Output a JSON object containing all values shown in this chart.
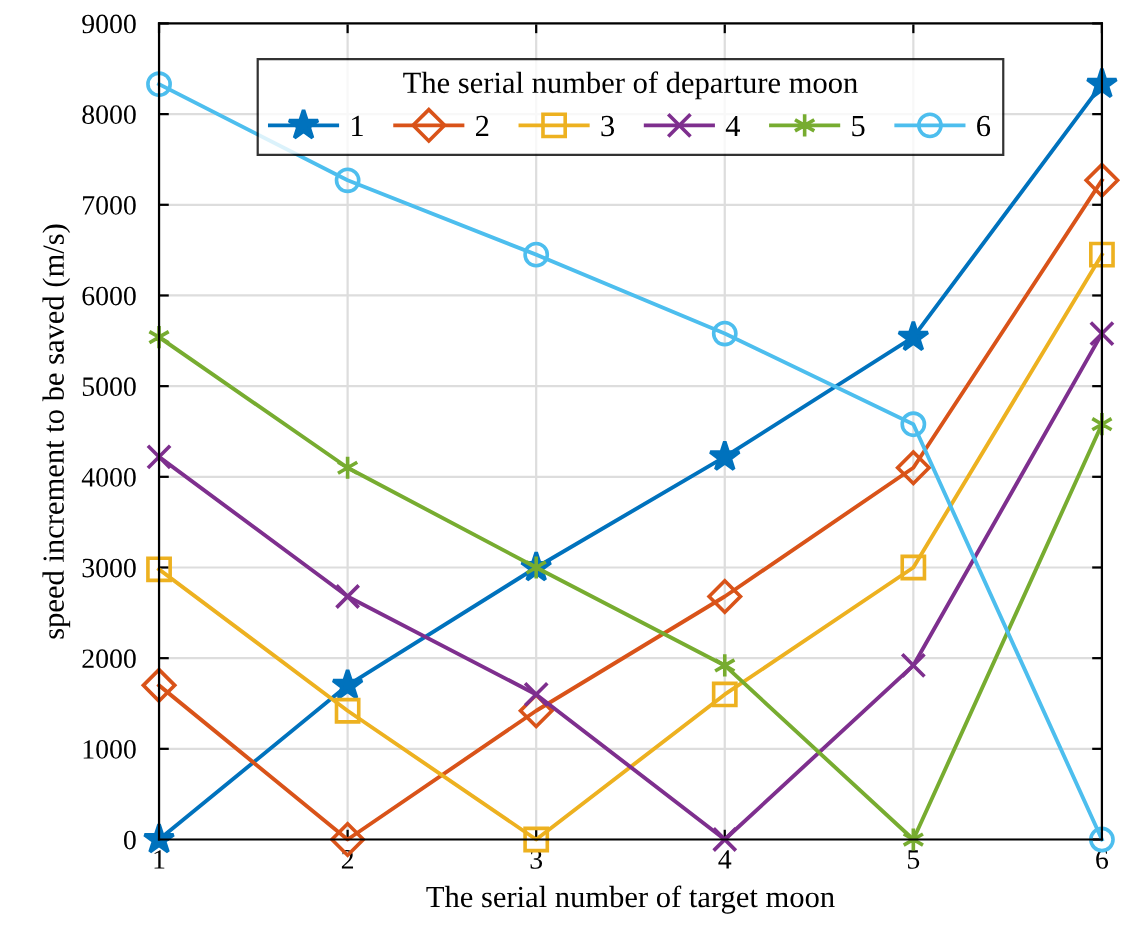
{
  "chart_data": {
    "type": "line",
    "xlabel": "The serial number of target moon",
    "ylabel": "speed increment to be saved (m/s)",
    "legend_title": "The serial number of departure moon",
    "x": [
      1,
      2,
      3,
      4,
      5,
      6
    ],
    "series": [
      {
        "name": "1",
        "color": "#0072bd",
        "marker": "star",
        "values": [
          0,
          1700,
          3000,
          4220,
          5540,
          8330
        ]
      },
      {
        "name": "2",
        "color": "#d95319",
        "marker": "diamond",
        "values": [
          1700,
          0,
          1420,
          2680,
          4100,
          7270
        ]
      },
      {
        "name": "3",
        "color": "#edb120",
        "marker": "square",
        "values": [
          2980,
          1420,
          0,
          1600,
          3000,
          6450
        ]
      },
      {
        "name": "4",
        "color": "#7e2f8e",
        "marker": "cross",
        "values": [
          4220,
          2680,
          1600,
          0,
          1920,
          5580
        ]
      },
      {
        "name": "5",
        "color": "#77ac30",
        "marker": "cross",
        "values": [
          5540,
          4100,
          3000,
          1920,
          0,
          4580
        ]
      },
      {
        "name": "6",
        "color": "#4dbeee",
        "marker": "circle",
        "values": [
          8330,
          7270,
          6450,
          5580,
          4580,
          0
        ]
      }
    ],
    "xlim": [
      1,
      6
    ],
    "xticks": [
      1,
      2,
      3,
      4,
      5,
      6
    ],
    "ylim": [
      0,
      9000
    ],
    "yticks": [
      0,
      1000,
      2000,
      3000,
      4000,
      5000,
      6000,
      7000,
      8000,
      9000
    ],
    "grid": true,
    "legend": "top",
    "line_style": "solid"
  }
}
